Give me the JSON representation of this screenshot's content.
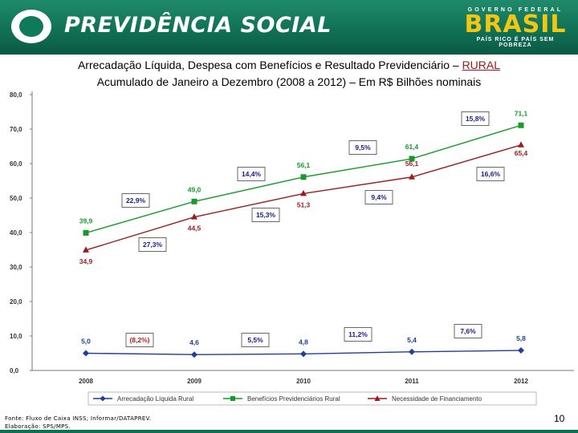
{
  "header": {
    "brand": "PREVIDÊNCIA SOCIAL",
    "gov_top": "GOVERNO FEDERAL",
    "gov_word": "BRASIL",
    "gov_slogan": "PAÍS RICO É PAÍS SEM POBREZA"
  },
  "title_line1_prefix": "Arrecadação Líquida, Despesa com Benefícios e Resultado Previdenciário – ",
  "title_line1_highlight": "RURAL",
  "title_line2": "Acumulado de Janeiro a Dezembro (2008 a 2012) – Em R$ Bilhões nominais",
  "chart_data": {
    "type": "line",
    "categories": [
      "2008",
      "2009",
      "2010",
      "2011",
      "2012"
    ],
    "ylim": [
      0,
      80
    ],
    "yticks": [
      "0,0",
      "10,0",
      "20,0",
      "30,0",
      "40,0",
      "50,0",
      "60,0",
      "70,0",
      "80,0"
    ],
    "series": [
      {
        "name": "Arrecadação Líquida Rural",
        "values": [
          5.0,
          4.6,
          4.8,
          5.4,
          5.8
        ],
        "labels": [
          "5,0",
          "4,6",
          "4,8",
          "5,4",
          "5,8"
        ],
        "color": "#1f3f99",
        "marker": "diamond"
      },
      {
        "name": "Benefícios Previdenciários Rural",
        "values": [
          39.9,
          49.0,
          56.1,
          61.4,
          71.1
        ],
        "labels": [
          "39,9",
          "49,0",
          "56,1",
          "61,4",
          "71,1"
        ],
        "color": "#179a2a",
        "marker": "square"
      },
      {
        "name": "Necessidade de Financiamento",
        "values": [
          34.9,
          44.5,
          51.3,
          56.1,
          65.4
        ],
        "labels": [
          "34,9",
          "44,5",
          "51,3",
          "56,1",
          "65,4"
        ],
        "color": "#9a1c1c",
        "marker": "triangle"
      }
    ],
    "growth_boxes": {
      "arrecadacao": [
        "(8,2%)",
        "5,5%",
        "11,2%",
        "7,6%"
      ],
      "beneficios": [
        "22,9%",
        "14,4%",
        "9,5%",
        "15,8%"
      ],
      "necessidade": [
        "27,3%",
        "15,3%",
        "9,4%",
        "16,6%"
      ]
    }
  },
  "footer": {
    "line1": "Fonte: Fluxo de Caixa INSS; Informar/DATAPREV.",
    "line2": "Elaboração: SPS/MPS."
  },
  "page_number": "10"
}
